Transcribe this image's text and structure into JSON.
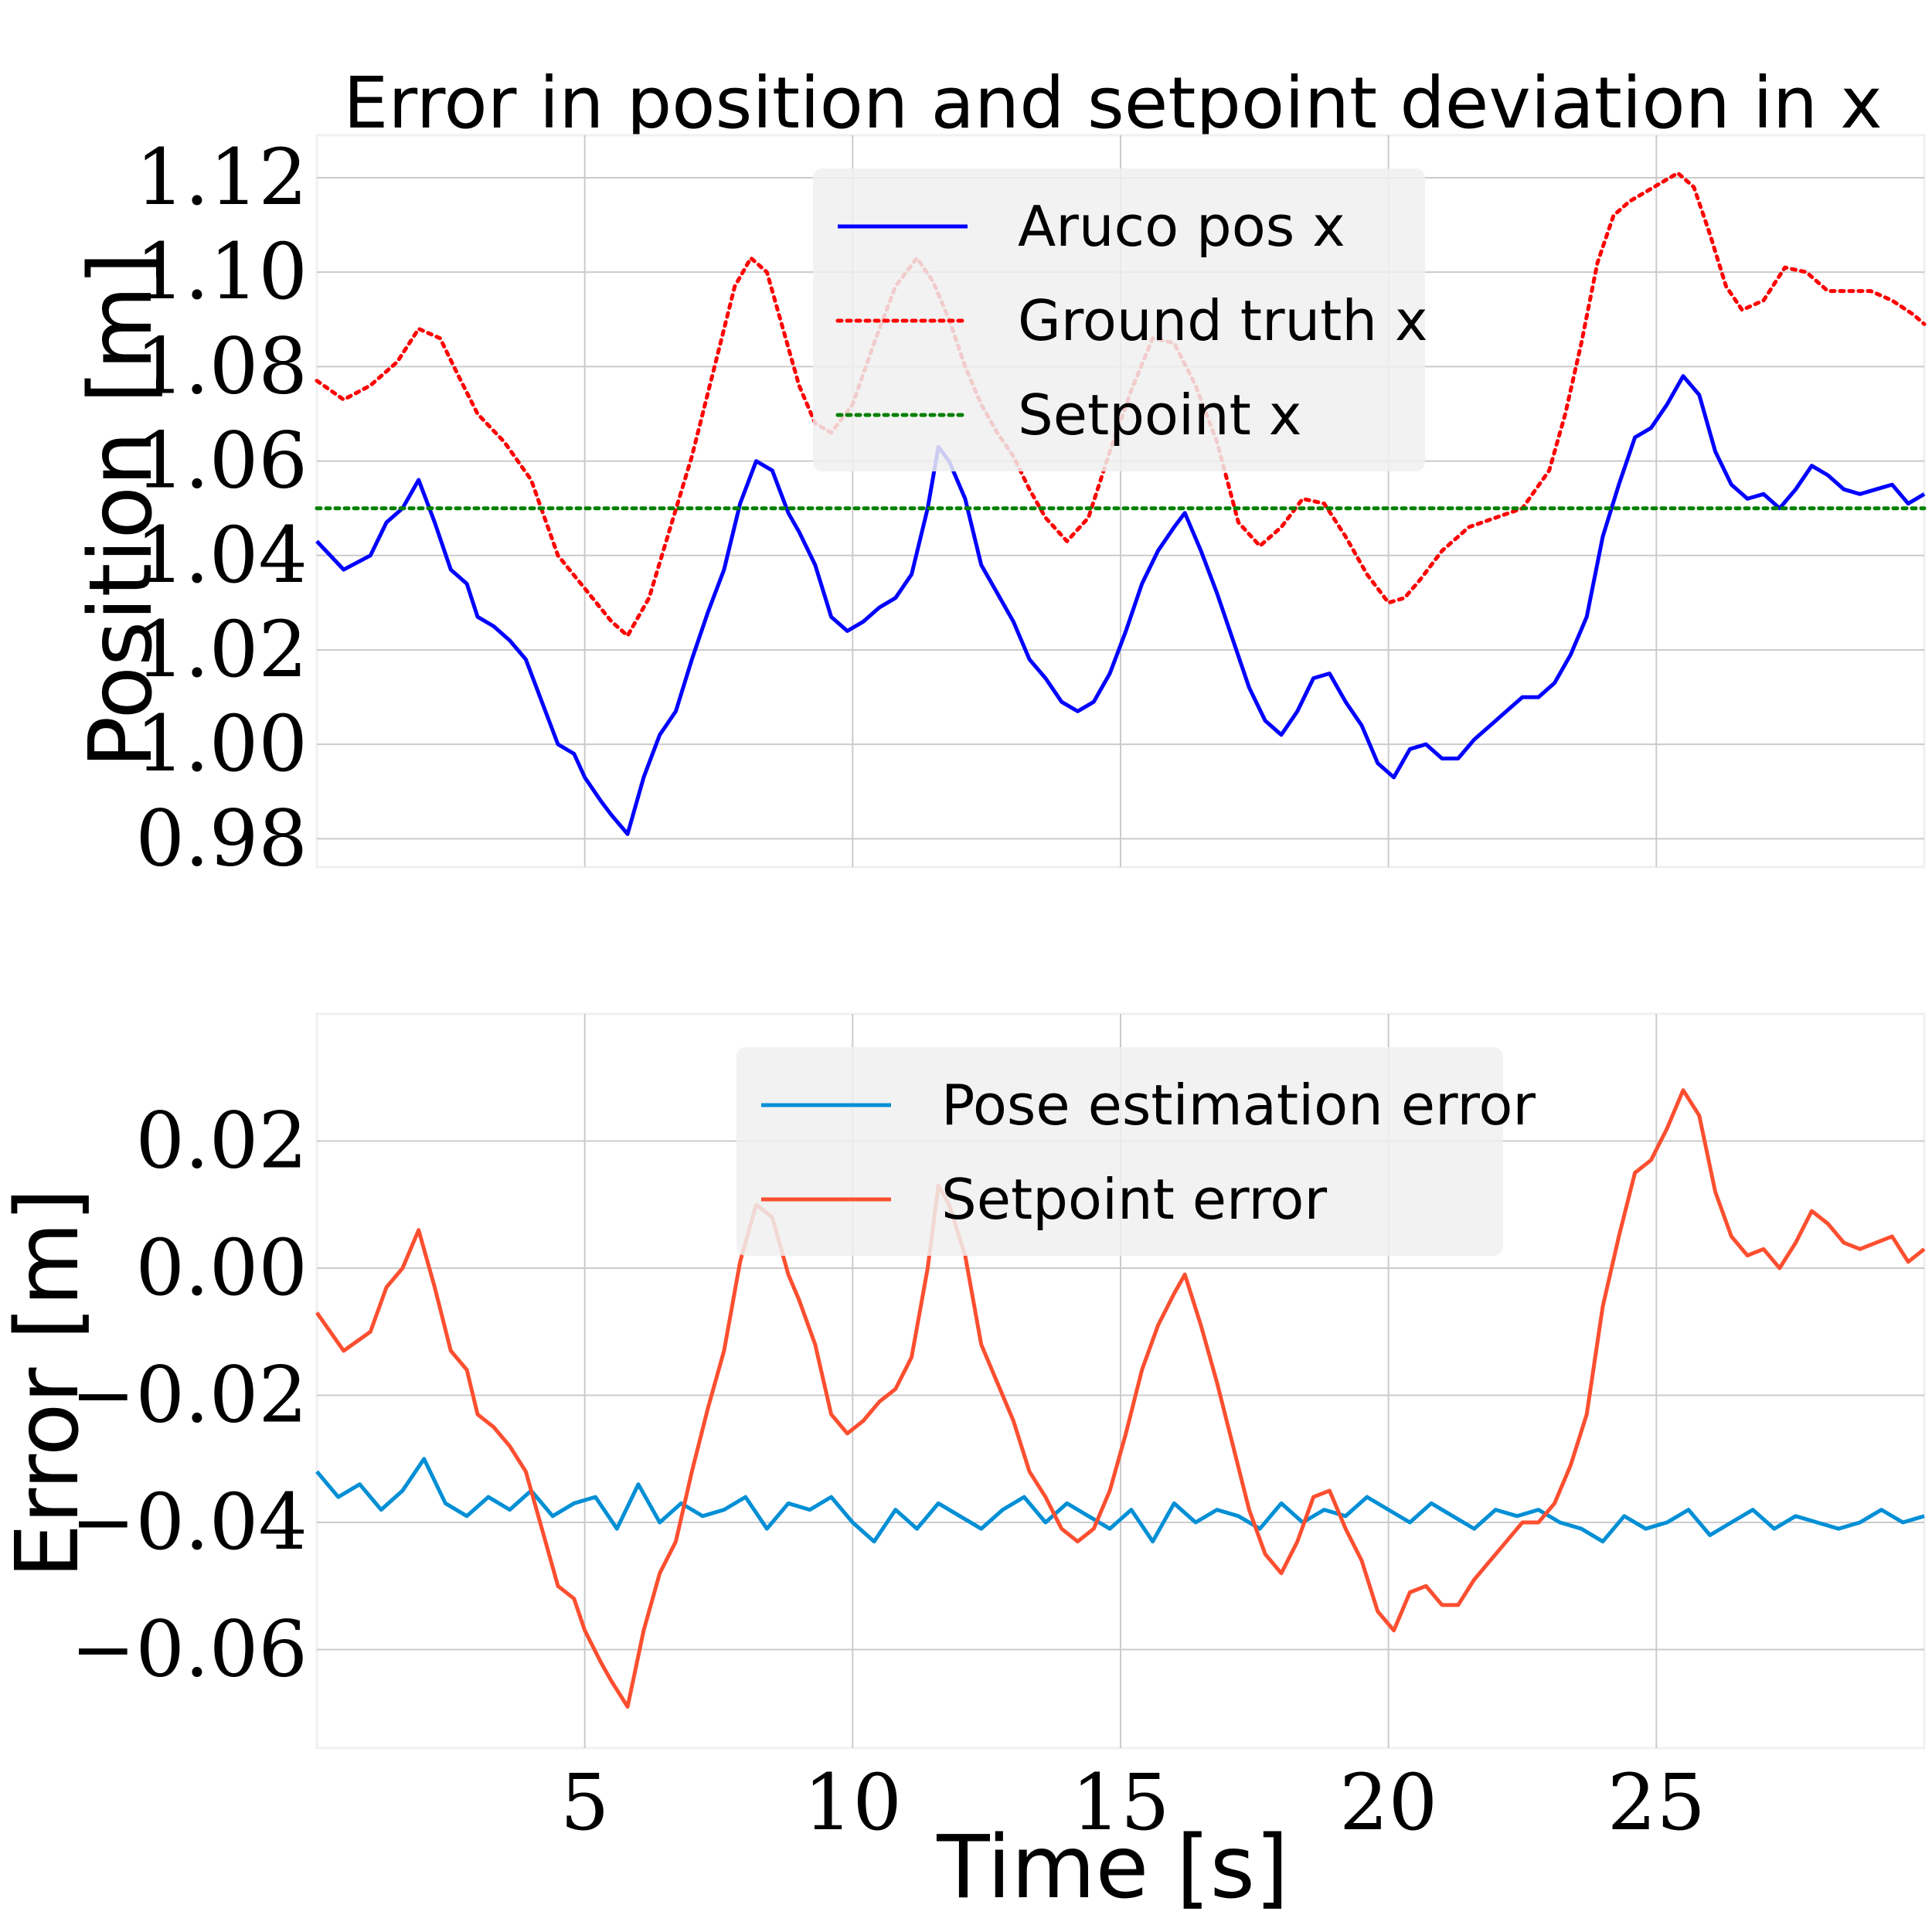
{
  "figure_title": "Error in position and setpoint deviation in x",
  "colors": {
    "aruco": "#0000ff",
    "ground_truth": "#ff0000",
    "setpoint": "#008000",
    "pose_error": "#008fd5",
    "setpoint_error": "#fc4f30",
    "grid": "#cbcbcb",
    "axes_bg": "#ffffff",
    "legend_bg": "#f0f0f0"
  },
  "chart_data": [
    {
      "type": "line",
      "title": "Error in position and setpoint deviation in x",
      "xlabel": "",
      "ylabel": "Position [m]",
      "xlim": [
        0.0,
        30.0
      ],
      "ylim": [
        0.974,
        1.129
      ],
      "yticks": [
        0.98,
        1.0,
        1.02,
        1.04,
        1.06,
        1.08,
        1.1,
        1.12
      ],
      "ytick_labels": [
        "0.98",
        "1.00",
        "1.02",
        "1.04",
        "1.06",
        "1.08",
        "1.10",
        "1.12"
      ],
      "xticks": [
        5,
        10,
        15,
        20,
        25
      ],
      "grid": true,
      "legend": "top-center",
      "series": [
        {
          "name": "Aruco pos x",
          "style": "solid",
          "color": "#0000ff",
          "x": [
            0.0,
            0.5,
            1.0,
            1.3,
            1.6,
            1.9,
            2.2,
            2.5,
            2.8,
            3.0,
            3.3,
            3.6,
            3.9,
            4.2,
            4.5,
            4.8,
            5.0,
            5.3,
            5.5,
            5.8,
            6.1,
            6.4,
            6.7,
            7.0,
            7.3,
            7.6,
            7.9,
            8.2,
            8.5,
            8.8,
            9.0,
            9.3,
            9.6,
            9.9,
            10.2,
            10.5,
            10.8,
            11.1,
            11.4,
            11.6,
            11.8,
            12.1,
            12.4,
            12.7,
            13.0,
            13.3,
            13.6,
            13.9,
            14.2,
            14.5,
            14.8,
            15.1,
            15.4,
            15.7,
            16.0,
            16.2,
            16.5,
            16.8,
            17.1,
            17.4,
            17.7,
            18.0,
            18.3,
            18.6,
            18.9,
            19.2,
            19.5,
            19.8,
            20.1,
            20.4,
            20.7,
            21.0,
            21.3,
            21.6,
            21.9,
            22.2,
            22.5,
            22.8,
            23.1,
            23.4,
            23.7,
            24.0,
            24.3,
            24.6,
            24.9,
            25.2,
            25.5,
            25.8,
            26.1,
            26.4,
            26.7,
            27.0,
            27.3,
            27.6,
            27.9,
            28.2,
            28.5,
            28.8,
            29.1,
            29.4,
            29.7,
            30.0
          ],
          "y": [
            1.043,
            1.037,
            1.04,
            1.047,
            1.05,
            1.056,
            1.047,
            1.037,
            1.034,
            1.027,
            1.025,
            1.022,
            1.018,
            1.009,
            1.0,
            0.998,
            0.993,
            0.988,
            0.985,
            0.981,
            0.993,
            1.002,
            1.007,
            1.018,
            1.028,
            1.037,
            1.051,
            1.06,
            1.058,
            1.049,
            1.045,
            1.038,
            1.027,
            1.024,
            1.026,
            1.029,
            1.031,
            1.036,
            1.05,
            1.063,
            1.06,
            1.052,
            1.038,
            1.032,
            1.026,
            1.018,
            1.014,
            1.009,
            1.007,
            1.009,
            1.015,
            1.024,
            1.034,
            1.041,
            1.046,
            1.049,
            1.041,
            1.032,
            1.022,
            1.012,
            1.005,
            1.002,
            1.007,
            1.014,
            1.015,
            1.009,
            1.004,
            0.996,
            0.993,
            0.999,
            1.0,
            0.997,
            0.997,
            1.001,
            1.004,
            1.007,
            1.01,
            1.01,
            1.013,
            1.019,
            1.027,
            1.044,
            1.055,
            1.065,
            1.067,
            1.072,
            1.078,
            1.074,
            1.062,
            1.055,
            1.052,
            1.053,
            1.05,
            1.054,
            1.059,
            1.057,
            1.054,
            1.053,
            1.054,
            1.055,
            1.051,
            1.053
          ]
        },
        {
          "name": "Ground truth x",
          "style": "dotted",
          "color": "#ff0000",
          "x": [
            0.0,
            0.5,
            1.0,
            1.5,
            1.9,
            2.3,
            2.6,
            3.0,
            3.5,
            4.0,
            4.5,
            5.0,
            5.5,
            5.8,
            6.2,
            6.6,
            7.0,
            7.4,
            7.8,
            8.1,
            8.4,
            8.7,
            9.0,
            9.3,
            9.6,
            10.0,
            10.4,
            10.8,
            11.2,
            11.5,
            11.8,
            12.1,
            12.4,
            12.7,
            13.0,
            13.3,
            13.6,
            14.0,
            14.4,
            14.8,
            15.2,
            15.6,
            16.0,
            16.4,
            16.8,
            17.2,
            17.6,
            18.0,
            18.4,
            18.8,
            19.2,
            19.6,
            20.0,
            20.3,
            20.6,
            21.0,
            21.5,
            22.0,
            22.5,
            23.0,
            23.3,
            23.6,
            23.9,
            24.2,
            24.5,
            24.8,
            25.1,
            25.4,
            25.7,
            26.0,
            26.3,
            26.6,
            27.0,
            27.4,
            27.8,
            28.2,
            28.6,
            29.0,
            29.4,
            29.8,
            30.0
          ],
          "y": [
            1.077,
            1.073,
            1.076,
            1.081,
            1.088,
            1.086,
            1.079,
            1.07,
            1.064,
            1.056,
            1.04,
            1.033,
            1.026,
            1.023,
            1.031,
            1.046,
            1.061,
            1.079,
            1.097,
            1.103,
            1.1,
            1.088,
            1.076,
            1.068,
            1.066,
            1.072,
            1.085,
            1.097,
            1.103,
            1.098,
            1.09,
            1.08,
            1.072,
            1.066,
            1.061,
            1.054,
            1.048,
            1.043,
            1.048,
            1.062,
            1.075,
            1.086,
            1.085,
            1.076,
            1.064,
            1.047,
            1.042,
            1.046,
            1.052,
            1.051,
            1.044,
            1.036,
            1.03,
            1.031,
            1.035,
            1.041,
            1.046,
            1.048,
            1.05,
            1.058,
            1.07,
            1.085,
            1.102,
            1.112,
            1.115,
            1.117,
            1.119,
            1.121,
            1.118,
            1.108,
            1.097,
            1.092,
            1.094,
            1.101,
            1.1,
            1.096,
            1.096,
            1.096,
            1.094,
            1.091,
            1.089
          ]
        },
        {
          "name": "Setpoint x",
          "style": "dotted",
          "color": "#008000",
          "x": [
            0.0,
            30.0
          ],
          "y": [
            1.05,
            1.05
          ]
        }
      ]
    },
    {
      "type": "line",
      "title": "",
      "xlabel": "Time [s]",
      "ylabel": "Error [m]",
      "xlim": [
        0.0,
        30.0
      ],
      "ylim": [
        -0.0755,
        0.04
      ],
      "yticks": [
        -0.06,
        -0.04,
        -0.02,
        0.0,
        0.02
      ],
      "ytick_labels": [
        "−0.06",
        "−0.04",
        "−0.02",
        "0.00",
        "0.02"
      ],
      "xticks": [
        5,
        10,
        15,
        20,
        25
      ],
      "xtick_labels": [
        "5",
        "10",
        "15",
        "20",
        "25"
      ],
      "grid": true,
      "legend": "top-center",
      "series": [
        {
          "name": "Pose estimation error",
          "style": "solid",
          "color": "#008fd5",
          "x": [
            0.0,
            0.4,
            0.8,
            1.2,
            1.6,
            2.0,
            2.4,
            2.8,
            3.2,
            3.6,
            4.0,
            4.4,
            4.8,
            5.2,
            5.6,
            6.0,
            6.4,
            6.8,
            7.2,
            7.6,
            8.0,
            8.4,
            8.8,
            9.2,
            9.6,
            10.0,
            10.4,
            10.8,
            11.2,
            11.6,
            12.0,
            12.4,
            12.8,
            13.2,
            13.6,
            14.0,
            14.4,
            14.8,
            15.2,
            15.6,
            16.0,
            16.4,
            16.8,
            17.2,
            17.6,
            18.0,
            18.4,
            18.8,
            19.2,
            19.6,
            20.0,
            20.4,
            20.8,
            21.2,
            21.6,
            22.0,
            22.4,
            22.8,
            23.2,
            23.6,
            24.0,
            24.4,
            24.8,
            25.2,
            25.6,
            26.0,
            26.4,
            26.8,
            27.2,
            27.6,
            28.0,
            28.4,
            28.8,
            29.2,
            29.6,
            30.0
          ],
          "y": [
            -0.032,
            -0.036,
            -0.034,
            -0.038,
            -0.035,
            -0.03,
            -0.037,
            -0.039,
            -0.036,
            -0.038,
            -0.035,
            -0.039,
            -0.037,
            -0.036,
            -0.041,
            -0.034,
            -0.04,
            -0.037,
            -0.039,
            -0.038,
            -0.036,
            -0.041,
            -0.037,
            -0.038,
            -0.036,
            -0.04,
            -0.043,
            -0.038,
            -0.041,
            -0.037,
            -0.039,
            -0.041,
            -0.038,
            -0.036,
            -0.04,
            -0.037,
            -0.039,
            -0.041,
            -0.038,
            -0.043,
            -0.037,
            -0.04,
            -0.038,
            -0.039,
            -0.041,
            -0.037,
            -0.04,
            -0.038,
            -0.039,
            -0.036,
            -0.038,
            -0.04,
            -0.037,
            -0.039,
            -0.041,
            -0.038,
            -0.039,
            -0.038,
            -0.04,
            -0.041,
            -0.043,
            -0.039,
            -0.041,
            -0.04,
            -0.038,
            -0.042,
            -0.04,
            -0.038,
            -0.041,
            -0.039,
            -0.04,
            -0.041,
            -0.04,
            -0.038,
            -0.04,
            -0.039
          ]
        },
        {
          "name": "Setpoint error",
          "style": "solid",
          "color": "#fc4f30",
          "x": [
            0.0,
            0.5,
            1.0,
            1.3,
            1.6,
            1.9,
            2.2,
            2.5,
            2.8,
            3.0,
            3.3,
            3.6,
            3.9,
            4.2,
            4.5,
            4.8,
            5.0,
            5.3,
            5.5,
            5.8,
            6.1,
            6.4,
            6.7,
            7.0,
            7.3,
            7.6,
            7.9,
            8.2,
            8.5,
            8.8,
            9.0,
            9.3,
            9.6,
            9.9,
            10.2,
            10.5,
            10.8,
            11.1,
            11.4,
            11.6,
            11.8,
            12.1,
            12.4,
            12.7,
            13.0,
            13.3,
            13.6,
            13.9,
            14.2,
            14.5,
            14.8,
            15.1,
            15.4,
            15.7,
            16.0,
            16.2,
            16.5,
            16.8,
            17.1,
            17.4,
            17.7,
            18.0,
            18.3,
            18.6,
            18.9,
            19.2,
            19.5,
            19.8,
            20.1,
            20.4,
            20.7,
            21.0,
            21.3,
            21.6,
            21.9,
            22.2,
            22.5,
            22.8,
            23.1,
            23.4,
            23.7,
            24.0,
            24.3,
            24.6,
            24.9,
            25.2,
            25.5,
            25.8,
            26.1,
            26.4,
            26.7,
            27.0,
            27.3,
            27.6,
            27.9,
            28.2,
            28.5,
            28.8,
            29.1,
            29.4,
            29.7,
            30.0
          ],
          "y": [
            -0.007,
            -0.013,
            -0.01,
            -0.003,
            0.0,
            0.006,
            -0.003,
            -0.013,
            -0.016,
            -0.023,
            -0.025,
            -0.028,
            -0.032,
            -0.041,
            -0.05,
            -0.052,
            -0.057,
            -0.062,
            -0.065,
            -0.069,
            -0.057,
            -0.048,
            -0.043,
            -0.032,
            -0.022,
            -0.013,
            0.001,
            0.01,
            0.008,
            -0.001,
            -0.005,
            -0.012,
            -0.023,
            -0.026,
            -0.024,
            -0.021,
            -0.019,
            -0.014,
            0.0,
            0.013,
            0.01,
            0.002,
            -0.012,
            -0.018,
            -0.024,
            -0.032,
            -0.036,
            -0.041,
            -0.043,
            -0.041,
            -0.035,
            -0.026,
            -0.016,
            -0.009,
            -0.004,
            -0.001,
            -0.009,
            -0.018,
            -0.028,
            -0.038,
            -0.045,
            -0.048,
            -0.043,
            -0.036,
            -0.035,
            -0.041,
            -0.046,
            -0.054,
            -0.057,
            -0.051,
            -0.05,
            -0.053,
            -0.053,
            -0.049,
            -0.046,
            -0.043,
            -0.04,
            -0.04,
            -0.037,
            -0.031,
            -0.023,
            -0.006,
            0.005,
            0.015,
            0.017,
            0.022,
            0.028,
            0.024,
            0.012,
            0.005,
            0.002,
            0.003,
            0.0,
            0.004,
            0.009,
            0.007,
            0.004,
            0.003,
            0.004,
            0.005,
            0.001,
            0.003
          ]
        }
      ]
    }
  ]
}
